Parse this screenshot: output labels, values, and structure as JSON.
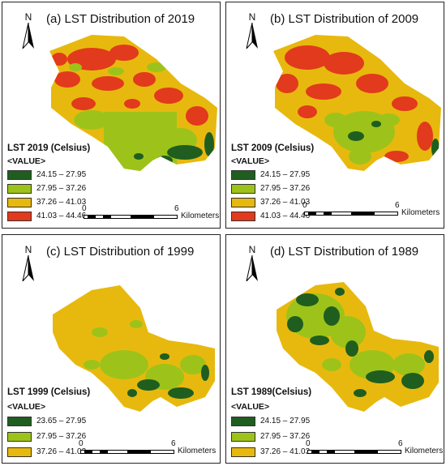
{
  "colors": {
    "dark_green": "#1f5e1f",
    "light_green": "#9dc31a",
    "yellow": "#e7b90e",
    "red": "#e23a1c"
  },
  "panels": [
    {
      "title": "(a) LST Distribution of 2019",
      "north": "N",
      "legend_title": "LST 2019 (Celsius)",
      "legend_value": "<VALUE>",
      "classes": [
        {
          "label": "24.15 – 27.95",
          "color": "#1f5e1f"
        },
        {
          "label": "27.95 – 37.26",
          "color": "#9dc31a"
        },
        {
          "label": "37.26 – 41.03",
          "color": "#e7b90e"
        },
        {
          "label": "41.03 – 44.46",
          "color": "#e23a1c"
        }
      ],
      "scale": {
        "start": "0",
        "end": "6",
        "unit": "Kilometers"
      }
    },
    {
      "title": "(b) LST Distribution of  2009",
      "north": "N",
      "legend_title": "LST 2009 (Celsius)",
      "legend_value": "<VALUE>",
      "classes": [
        {
          "label": "24.15 – 27.95",
          "color": "#1f5e1f"
        },
        {
          "label": "27.95 – 37.26",
          "color": "#9dc31a"
        },
        {
          "label": "37.26 – 41.03",
          "color": "#e7b90e"
        },
        {
          "label": "41.03 – 44.46",
          "color": "#e23a1c"
        }
      ],
      "scale": {
        "start": "0",
        "end": "6",
        "unit": "Kilometers"
      }
    },
    {
      "title": "(c) LST Distribution of 1999",
      "north": "N",
      "legend_title": "LST 1999 (Celsius)",
      "legend_value": "<VALUE>",
      "classes": [
        {
          "label": "23.65 – 27.95",
          "color": "#1f5e1f"
        },
        {
          "label": "27.95 – 37.26",
          "color": "#9dc31a"
        },
        {
          "label": "37.26 – 41.03",
          "color": "#e7b90e"
        }
      ],
      "scale": {
        "start": "0",
        "end": "6",
        "unit": "Kilometers"
      }
    },
    {
      "title": "(d) LST Distribution of 1989",
      "north": "N",
      "legend_title": "LST 1989(Celsius)",
      "legend_value": "<VALUE>",
      "classes": [
        {
          "label": "24.15 – 27.95",
          "color": "#1f5e1f"
        },
        {
          "label": "27.95 – 37.26",
          "color": "#9dc31a"
        },
        {
          "label": "37.26 – 41.03",
          "color": "#e7b90e"
        }
      ],
      "scale": {
        "start": "0",
        "end": "6",
        "unit": "Kilometers"
      }
    }
  ]
}
